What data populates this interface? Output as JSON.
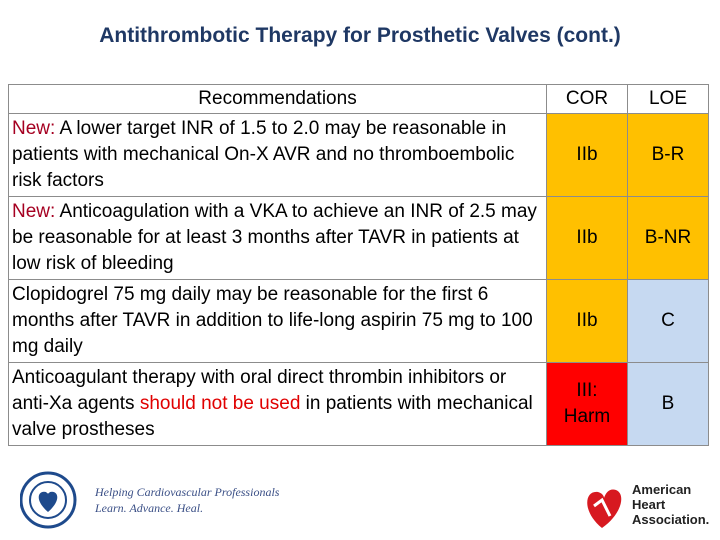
{
  "title": "Antithrombotic Therapy for Prosthetic Valves (cont.)",
  "table": {
    "header": [
      "Recommendations",
      "COR",
      "LOE"
    ],
    "rows": [
      {
        "recommendation": [
          {
            "text": "New:",
            "color": "#a50021"
          },
          {
            "text": "A lower target INR of 1.5 to 2.0 may be reasonable in patients with mechanical On-X AVR and no thromboembolic risk factors",
            "color": "#000000"
          }
        ],
        "cor": "IIb",
        "cor_color": "#ffc000",
        "loe": "B-R",
        "loe_color": "#ffc000"
      },
      {
        "recommendation": [
          {
            "text": "New:",
            "color": "#a50021"
          },
          {
            "text": "Anticoagulation with a VKA to achieve an INR of 2.5 may be reasonable for at least 3 months after TAVR in patients at low risk of bleeding",
            "color": "#000000"
          }
        ],
        "cor": "IIb",
        "cor_color": "#ffc000",
        "loe": "B-NR",
        "loe_color": "#ffc000"
      },
      {
        "recommendation": [
          {
            "text": "Clopidogrel 75 mg daily may be reasonable for the first 6 months after TAVR in addition to life-long aspirin 75 mg to 100 mg daily",
            "color": "#000000"
          }
        ],
        "cor": "IIb",
        "cor_color": "#ffc000",
        "loe": "C",
        "loe_color": "#c6d9f1"
      },
      {
        "recommendation": [
          {
            "text": "Anticoagulant therapy with oral direct thrombin inhibitors or anti-Xa agents",
            "color": "#000000"
          },
          {
            "text": "should not be used",
            "color": "#e00000"
          },
          {
            "text": "in patients with mechanical valve prostheses",
            "color": "#000000"
          }
        ],
        "cor": "III: Harm",
        "cor_color": "#ff0000",
        "loe": "B",
        "loe_color": "#c6d9f1"
      }
    ]
  },
  "footer": {
    "acc_tagline": "Helping Cardiovascular Professionals",
    "acc_motto": "Learn. Advance. Heal.",
    "aha_name": [
      "American",
      "Heart",
      "Association."
    ]
  }
}
